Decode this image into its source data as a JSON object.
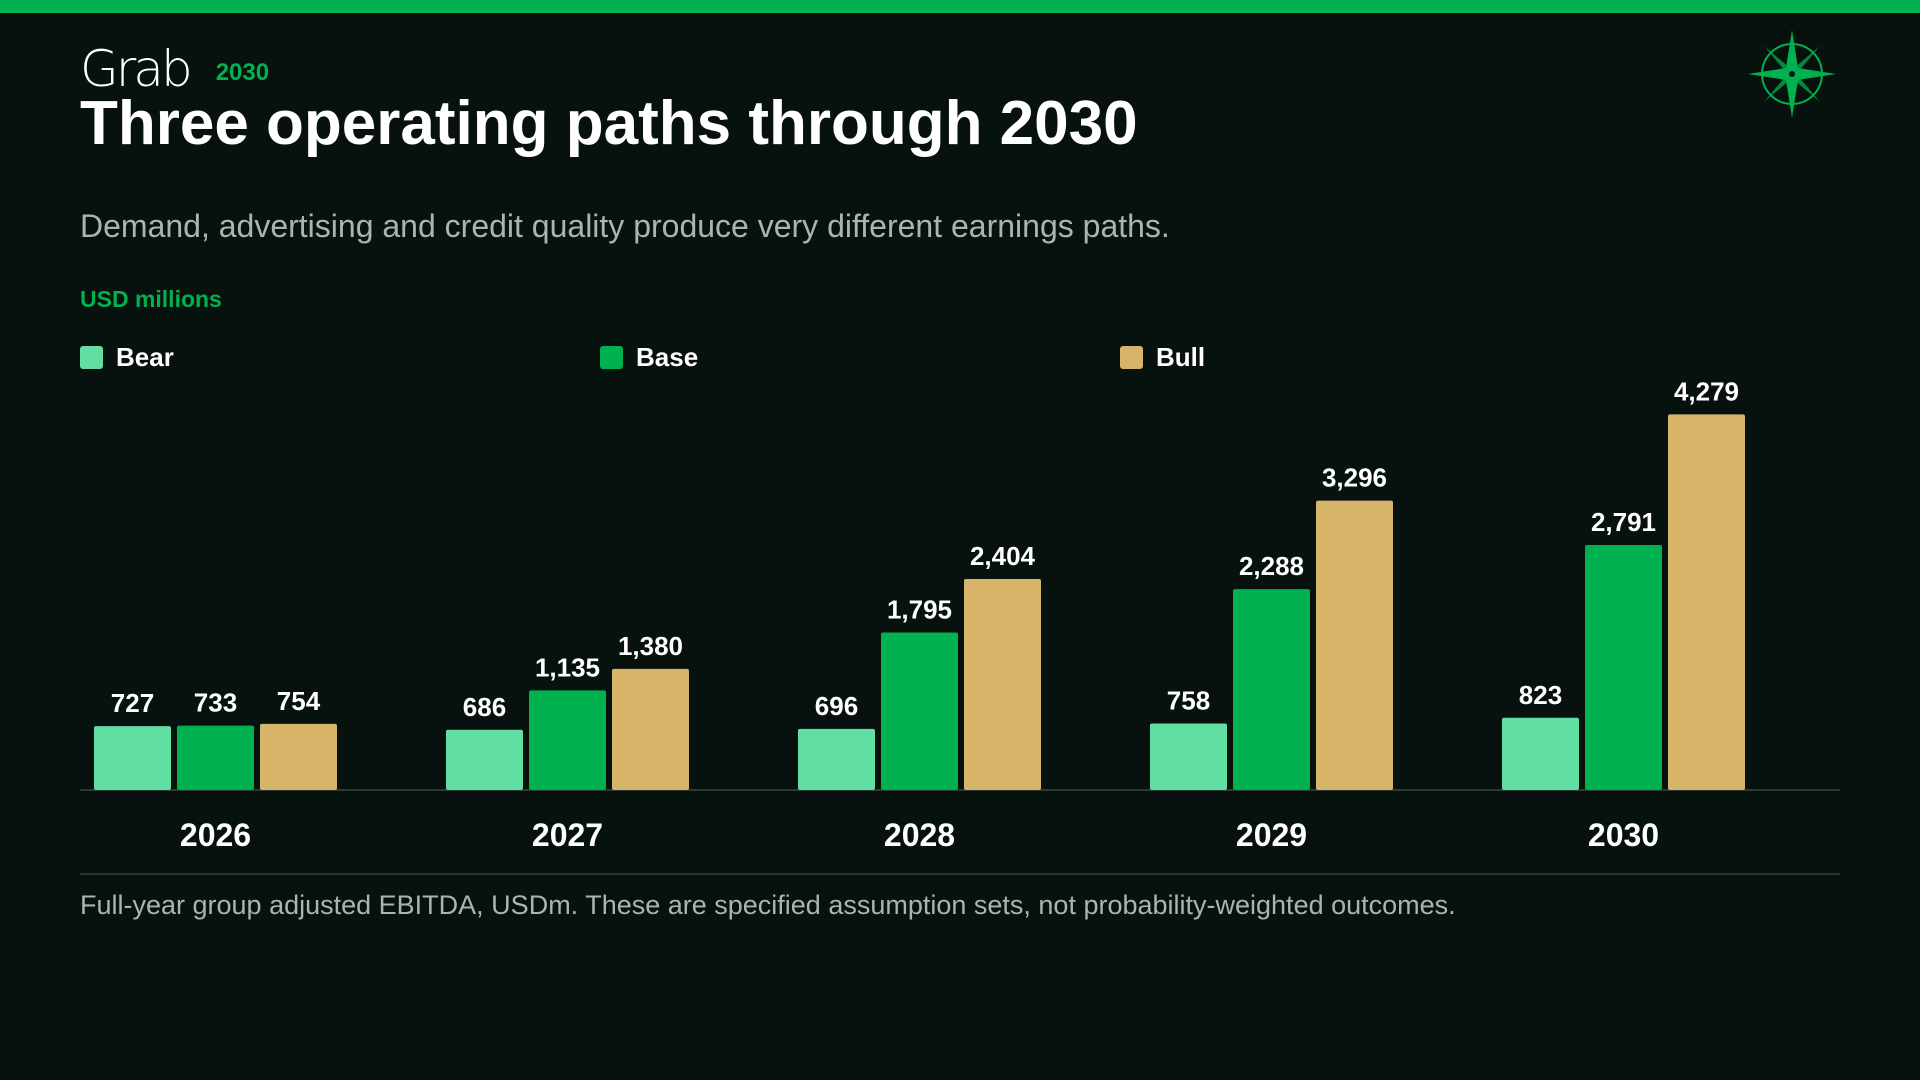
{
  "header": {
    "logo_text": "Grab",
    "year_tag": "2030",
    "title": "Three operating paths through 2030",
    "subtitle": "Demand, advertising and credit quality produce very different earnings paths.",
    "unit_label": "USD millions"
  },
  "footer": {
    "note": "Full-year group adjusted EBITDA, USDm. These are specified assumption sets, not probability-weighted outcomes."
  },
  "colors": {
    "background": "#07110d",
    "accent": "#00b14f",
    "bear": "#62dea3",
    "base": "#00b14f",
    "bull": "#d6b56b"
  },
  "icons": {
    "brand": "grab-logo",
    "corner": "compass-rose-icon"
  },
  "chart_data": {
    "type": "bar",
    "categories": [
      "2026",
      "2027",
      "2028",
      "2029",
      "2030"
    ],
    "series": [
      {
        "name": "Bear",
        "color": "#62dea3",
        "values": [
          727,
          686,
          696,
          758,
          823
        ],
        "labels": [
          "727",
          "686",
          "696",
          "758",
          "823"
        ]
      },
      {
        "name": "Base",
        "color": "#00b14f",
        "values": [
          733,
          1135,
          1795,
          2288,
          2791
        ],
        "labels": [
          "733",
          "1,135",
          "1,795",
          "2,288",
          "2,791"
        ]
      },
      {
        "name": "Bull",
        "color": "#d6b56b",
        "values": [
          754,
          1380,
          2404,
          3296,
          4279
        ],
        "labels": [
          "754",
          "1,380",
          "2,404",
          "3,296",
          "4,279"
        ]
      }
    ],
    "ylim": [
      0,
      4500
    ],
    "grid": false,
    "legend": "top-left",
    "xlabel": "",
    "ylabel": "USD millions"
  }
}
